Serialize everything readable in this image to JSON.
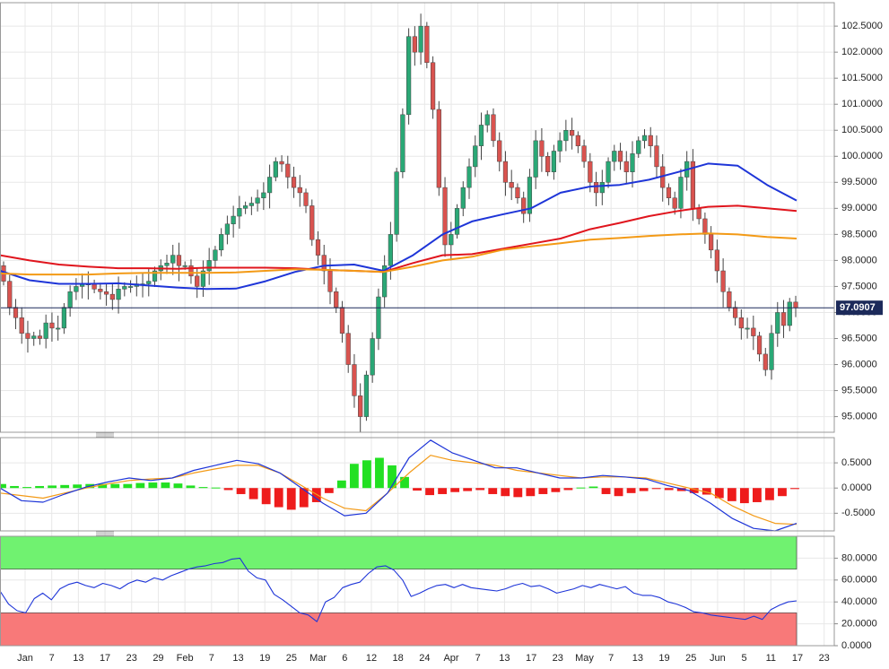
{
  "chart_data": [
    {
      "type": "candlestick",
      "panel": "price",
      "ylim": [
        94.7,
        102.95
      ],
      "yticks": [
        "102.5000",
        "102.0000",
        "101.5000",
        "101.0000",
        "100.5000",
        "100.0000",
        "99.5000",
        "99.0000",
        "98.5000",
        "98.0000",
        "97.5000",
        "97.0000",
        "96.5000",
        "96.0000",
        "95.5000",
        "95.0000"
      ],
      "ytick_values": [
        102.5,
        102.0,
        101.5,
        101.0,
        100.5,
        100.0,
        99.5,
        99.0,
        98.5,
        98.0,
        97.5,
        97.0,
        96.5,
        96.0,
        95.5,
        95.0
      ],
      "xticks": [
        "Jan",
        "7",
        "13",
        "17",
        "23",
        "29",
        "Feb",
        "7",
        "13",
        "19",
        "25",
        "Mar",
        "6",
        "12",
        "18",
        "24",
        "Apr",
        "7",
        "13",
        "17",
        "23",
        "May",
        "7",
        "13",
        "19",
        "25",
        "Jun",
        "5",
        "11",
        "17",
        "23"
      ],
      "last_price": {
        "value": 97.0907,
        "label": "97.0907"
      },
      "closes": [
        97.6,
        97.1,
        96.9,
        96.6,
        96.5,
        96.55,
        96.5,
        96.8,
        96.7,
        96.7,
        97.1,
        97.4,
        97.5,
        97.55,
        97.55,
        97.45,
        97.4,
        97.35,
        97.25,
        97.45,
        97.5,
        97.5,
        97.55,
        97.55,
        97.6,
        97.8,
        97.9,
        97.95,
        98.1,
        97.9,
        97.9,
        97.7,
        97.5,
        97.8,
        98.0,
        98.2,
        98.5,
        98.7,
        98.85,
        99.0,
        99.05,
        99.1,
        99.2,
        99.3,
        99.6,
        99.9,
        99.85,
        99.6,
        99.4,
        99.3,
        99.05,
        98.4,
        98.1,
        97.8,
        97.4,
        97.1,
        96.6,
        96.0,
        95.4,
        95.0,
        95.8,
        96.5,
        97.3,
        97.9,
        98.5,
        99.7,
        100.8,
        102.3,
        102.0,
        102.5,
        101.8,
        100.9,
        99.4,
        98.3,
        98.5,
        99.0,
        99.4,
        99.8,
        100.2,
        100.6,
        100.8,
        100.3,
        99.9,
        99.5,
        99.4,
        99.2,
        98.9,
        99.6,
        100.3,
        100.0,
        99.7,
        100.1,
        100.3,
        100.5,
        100.4,
        100.2,
        99.9,
        99.5,
        99.3,
        99.5,
        99.9,
        100.1,
        99.9,
        99.7,
        100.05,
        100.3,
        100.4,
        100.2,
        99.8,
        99.4,
        99.2,
        99.0,
        99.6,
        99.9,
        99.0,
        98.8,
        98.5,
        98.2,
        97.8,
        97.4,
        97.1,
        96.9,
        96.7,
        96.7,
        96.55,
        96.2,
        95.9,
        96.6,
        97.0,
        96.75,
        97.2,
        97.0907
      ],
      "moving_averages": [
        {
          "color": "#1e35d8",
          "points": [
            97.8,
            97.62,
            97.55,
            97.55,
            97.56,
            97.52,
            97.48,
            97.45,
            97.46,
            97.6,
            97.78,
            97.9,
            97.92,
            97.8,
            98.1,
            98.5,
            98.75,
            98.88,
            99.0,
            99.3,
            99.42,
            99.45,
            99.55,
            99.7,
            99.86,
            99.82,
            99.45,
            99.15
          ]
        },
        {
          "color": "#e0151d",
          "points": [
            98.1,
            98.0,
            97.92,
            97.88,
            97.85,
            97.85,
            97.84,
            97.86,
            97.86,
            97.86,
            97.85,
            97.82,
            97.8,
            97.78,
            97.95,
            98.1,
            98.12,
            98.22,
            98.32,
            98.42,
            98.6,
            98.72,
            98.85,
            98.95,
            99.03,
            99.05,
            99.0,
            98.95
          ]
        },
        {
          "color": "#f39a16",
          "points": [
            97.75,
            97.73,
            97.73,
            97.73,
            97.75,
            97.76,
            97.76,
            97.76,
            97.77,
            97.8,
            97.83,
            97.82,
            97.8,
            97.78,
            97.88,
            98.0,
            98.07,
            98.2,
            98.27,
            98.33,
            98.4,
            98.43,
            98.47,
            98.5,
            98.52,
            98.5,
            98.45,
            98.42
          ]
        }
      ]
    },
    {
      "type": "macd",
      "panel": "macd",
      "ylim": [
        -0.85,
        1.0
      ],
      "yticks": [
        "0.5000",
        "0.0000",
        "-0.5000"
      ],
      "ytick_values": [
        0.5,
        0.0,
        -0.5
      ],
      "histogram": [
        0.08,
        0.04,
        0.02,
        0.04,
        0.05,
        0.06,
        0.07,
        0.08,
        0.08,
        0.08,
        0.08,
        0.1,
        0.11,
        0.11,
        0.09,
        0.05,
        0.02,
        0.01,
        -0.04,
        -0.12,
        -0.22,
        -0.32,
        -0.38,
        -0.43,
        -0.38,
        -0.28,
        -0.1,
        0.15,
        0.48,
        0.55,
        0.6,
        0.45,
        0.22,
        -0.05,
        -0.14,
        -0.12,
        -0.08,
        -0.06,
        -0.04,
        -0.12,
        -0.16,
        -0.18,
        -0.16,
        -0.12,
        -0.08,
        -0.04,
        0.01,
        0.03,
        -0.12,
        -0.16,
        -0.1,
        -0.06,
        -0.02,
        -0.04,
        -0.06,
        -0.1,
        -0.13,
        -0.2,
        -0.26,
        -0.3,
        -0.28,
        -0.24,
        -0.16,
        -0.02
      ],
      "macd_line": {
        "color": "#1e35d8",
        "points": [
          0.0,
          -0.25,
          -0.28,
          -0.12,
          0.02,
          0.12,
          0.2,
          0.15,
          0.2,
          0.35,
          0.45,
          0.55,
          0.48,
          0.3,
          0.0,
          -0.3,
          -0.55,
          -0.5,
          -0.1,
          0.6,
          0.95,
          0.7,
          0.55,
          0.4,
          0.4,
          0.3,
          0.2,
          0.2,
          0.25,
          0.22,
          0.18,
          0.05,
          -0.05,
          -0.3,
          -0.6,
          -0.8,
          -0.85,
          -0.7
        ]
      },
      "signal_line": {
        "color": "#f39a16",
        "points": [
          -0.1,
          -0.15,
          -0.2,
          -0.1,
          0.0,
          0.08,
          0.15,
          0.18,
          0.2,
          0.3,
          0.38,
          0.45,
          0.45,
          0.3,
          0.05,
          -0.2,
          -0.4,
          -0.45,
          -0.1,
          0.3,
          0.65,
          0.55,
          0.5,
          0.45,
          0.35,
          0.3,
          0.25,
          0.2,
          0.22,
          0.22,
          0.2,
          0.1,
          0.0,
          -0.1,
          -0.35,
          -0.55,
          -0.7,
          -0.72
        ]
      }
    },
    {
      "type": "oscillator",
      "panel": "rsi",
      "ylim": [
        0,
        100
      ],
      "yticks": [
        "80.0000",
        "60.0000",
        "40.0000",
        "20.0000",
        "0.0000"
      ],
      "ytick_values": [
        80,
        60,
        40,
        20,
        0
      ],
      "overbought_zone": {
        "from": 70,
        "to": 100,
        "color": "#70f270"
      },
      "oversold_zone": {
        "from": 0,
        "to": 30,
        "color": "#f87979"
      },
      "line": {
        "color": "#1e35d8",
        "points": [
          50,
          38,
          32,
          30,
          43,
          48,
          42,
          52,
          56,
          58,
          55,
          53,
          57,
          55,
          52,
          57,
          60,
          58,
          62,
          60,
          64,
          67,
          70,
          72,
          73,
          75,
          76,
          79,
          80,
          68,
          62,
          60,
          47,
          42,
          36,
          30,
          28,
          22,
          40,
          44,
          53,
          56,
          58,
          66,
          72,
          73,
          69,
          60,
          45,
          48,
          52,
          55,
          56,
          53,
          56,
          53,
          52,
          51,
          50,
          52,
          55,
          57,
          54,
          55,
          52,
          48,
          50,
          52,
          55,
          53,
          56,
          54,
          52,
          54,
          48,
          46,
          46,
          44,
          40,
          38,
          35,
          31,
          30,
          28,
          27,
          26,
          25,
          24,
          27,
          24,
          33,
          37,
          40,
          41
        ]
      }
    }
  ]
}
